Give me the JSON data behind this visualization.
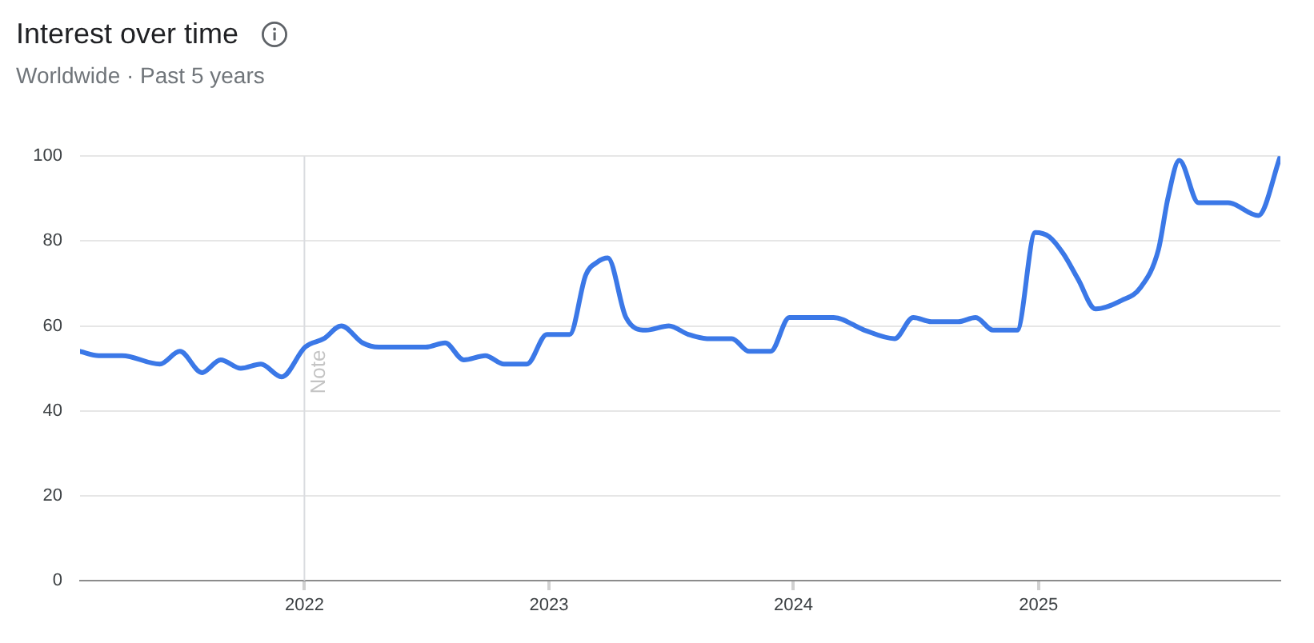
{
  "chart_data": {
    "type": "line",
    "title": "Interest over time",
    "subtitle": "Worldwide · Past 5 years",
    "x": [
      "2021-01-31",
      "2021-02-28",
      "2021-04-04",
      "2021-05-30",
      "2021-06-29",
      "2021-08-01",
      "2021-08-29",
      "2021-09-28",
      "2021-10-28",
      "2021-11-28",
      "2022-01-02",
      "2022-01-30",
      "2022-02-25",
      "2022-03-29",
      "2022-04-22",
      "2022-07-01",
      "2022-07-30",
      "2022-08-27",
      "2022-09-28",
      "2022-10-26",
      "2022-11-29",
      "2022-12-29",
      "2023-02-01",
      "2023-02-25",
      "2023-03-14",
      "2023-03-30",
      "2023-04-26",
      "2023-05-26",
      "2023-06-29",
      "2023-07-28",
      "2023-08-25",
      "2023-10-01",
      "2023-10-27",
      "2023-11-28",
      "2023-12-26",
      "2024-03-01",
      "2024-04-16",
      "2024-05-31",
      "2024-06-28",
      "2024-07-25",
      "2024-09-03",
      "2024-09-29",
      "2024-10-25",
      "2024-11-30",
      "2024-12-27",
      "2025-01-17",
      "2025-02-07",
      "2025-03-01",
      "2025-03-27",
      "2025-05-05",
      "2025-06-02",
      "2025-06-29",
      "2025-07-13",
      "2025-07-30",
      "2025-08-28",
      "2025-10-11",
      "2025-11-25",
      "2025-12-28"
    ],
    "values": [
      54,
      53,
      53,
      51,
      54,
      49,
      52,
      50,
      51,
      48,
      55,
      57,
      60,
      56,
      55,
      55,
      56,
      52,
      53,
      51,
      51,
      58,
      58,
      72,
      75,
      76,
      62,
      59,
      60,
      58,
      57,
      57,
      54,
      54,
      62,
      62,
      59,
      57,
      62,
      61,
      61,
      62,
      59,
      59,
      82,
      81,
      77,
      71,
      64,
      66,
      69,
      78,
      90,
      99,
      89,
      89,
      86,
      100
    ],
    "color": "#3b78e7",
    "xlim": [
      "2021-01-31",
      "2025-12-28"
    ],
    "xticks": [
      "2022",
      "2023",
      "2024",
      "2025"
    ],
    "ylim": [
      0,
      100
    ],
    "yticks": [
      0,
      20,
      40,
      60,
      80,
      100
    ],
    "grid": "y",
    "marker": "none",
    "ref_lines": [
      {
        "axis": "x",
        "value": "2022",
        "label": "Note",
        "color": "#dadce0"
      }
    ]
  }
}
